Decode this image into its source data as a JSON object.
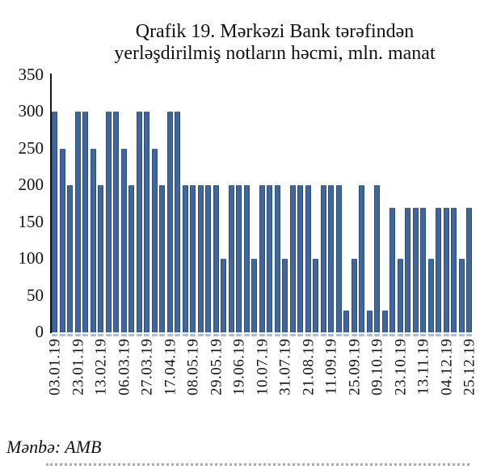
{
  "title": {
    "line1": "Qrafik 19. Mərkəzi Bank tərəfindən",
    "line2": "yerləşdirilmiş notların həcmi, mln. manat"
  },
  "source": "Mənbə: AMB",
  "colors": {
    "bar_fill": "#40679B",
    "bar_edge": "#2C4C7A",
    "bar_bottom_dash": "#A7BDD9",
    "axis_line": "#151515",
    "divider_dotted": "#ababab"
  },
  "chart_data": {
    "type": "bar",
    "title": "Qrafik 19. Mərkəzi Bank tərəfindən yerləşdirilmiş notların həcmi, mln. manat",
    "ylabel": "",
    "xlabel": "",
    "ylim": [
      0,
      350
    ],
    "yticks": [
      0,
      50,
      100,
      150,
      200,
      250,
      300,
      350
    ],
    "grid": false,
    "legend": "none",
    "x_tick_labels": [
      "03.01.19",
      "23.01.19",
      "13.02.19",
      "06.03.19",
      "27.03.19",
      "17.04.19",
      "08.05.19",
      "29.05.19",
      "19.06.19",
      "10.07.19",
      "31.07.19",
      "21.08.19",
      "11.09.19",
      "25.09.19",
      "09.10.19",
      "23.10.19",
      "13.11.19",
      "04.12.19",
      "25.12.19"
    ],
    "x_label_every_n_bars": 3,
    "values": [
      300,
      250,
      200,
      300,
      300,
      250,
      200,
      300,
      300,
      250,
      200,
      300,
      300,
      250,
      200,
      300,
      300,
      200,
      200,
      200,
      200,
      200,
      100,
      200,
      200,
      200,
      100,
      200,
      200,
      200,
      100,
      200,
      200,
      200,
      100,
      200,
      200,
      200,
      30,
      100,
      200,
      30,
      200,
      30,
      170,
      100,
      170,
      170,
      170,
      100,
      170,
      170,
      170,
      100,
      170
    ]
  }
}
